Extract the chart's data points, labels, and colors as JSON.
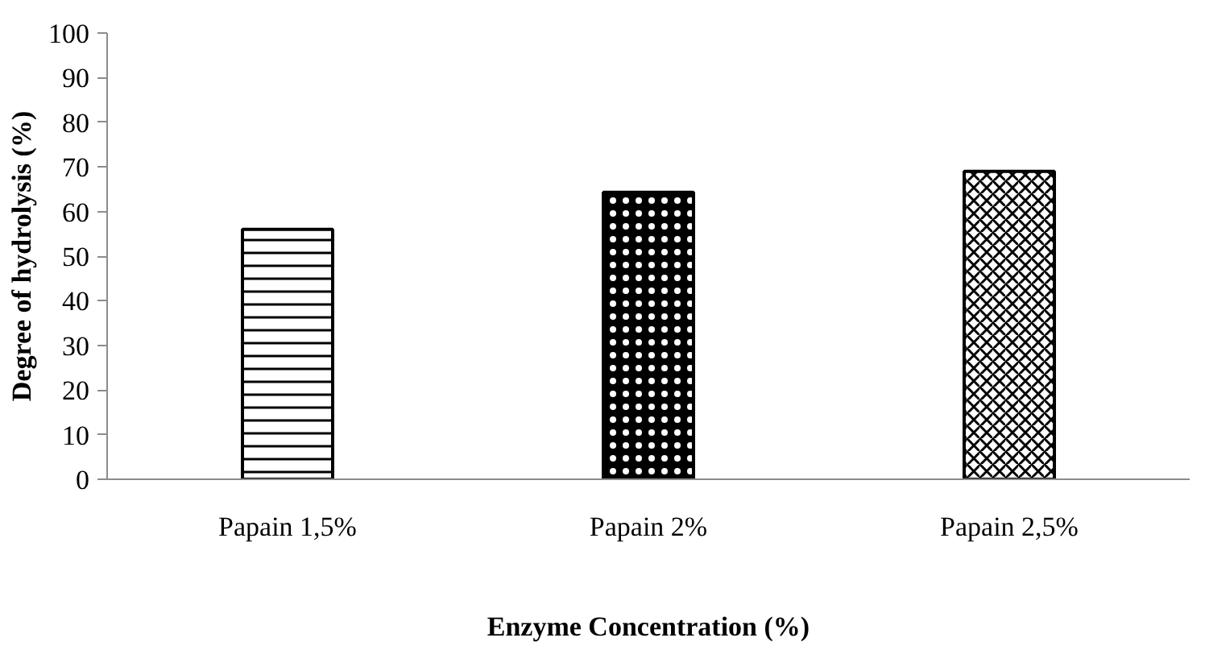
{
  "chart_data": {
    "type": "bar",
    "xlabel": "Enzyme Concentration (%)",
    "ylabel": "Degree of hydrolysis (%)",
    "categories": [
      "Papain 1,5%",
      "Papain 2%",
      "Papain 2,5%"
    ],
    "values": [
      56.0,
      64.3,
      69.0
    ],
    "colors": [
      "#ffffff",
      "#000000",
      "#ffffff"
    ],
    "ylim": [
      0,
      100
    ],
    "yticks": [
      0,
      10,
      20,
      30,
      40,
      50,
      60,
      70,
      80,
      90,
      100
    ],
    "grid": false
  }
}
